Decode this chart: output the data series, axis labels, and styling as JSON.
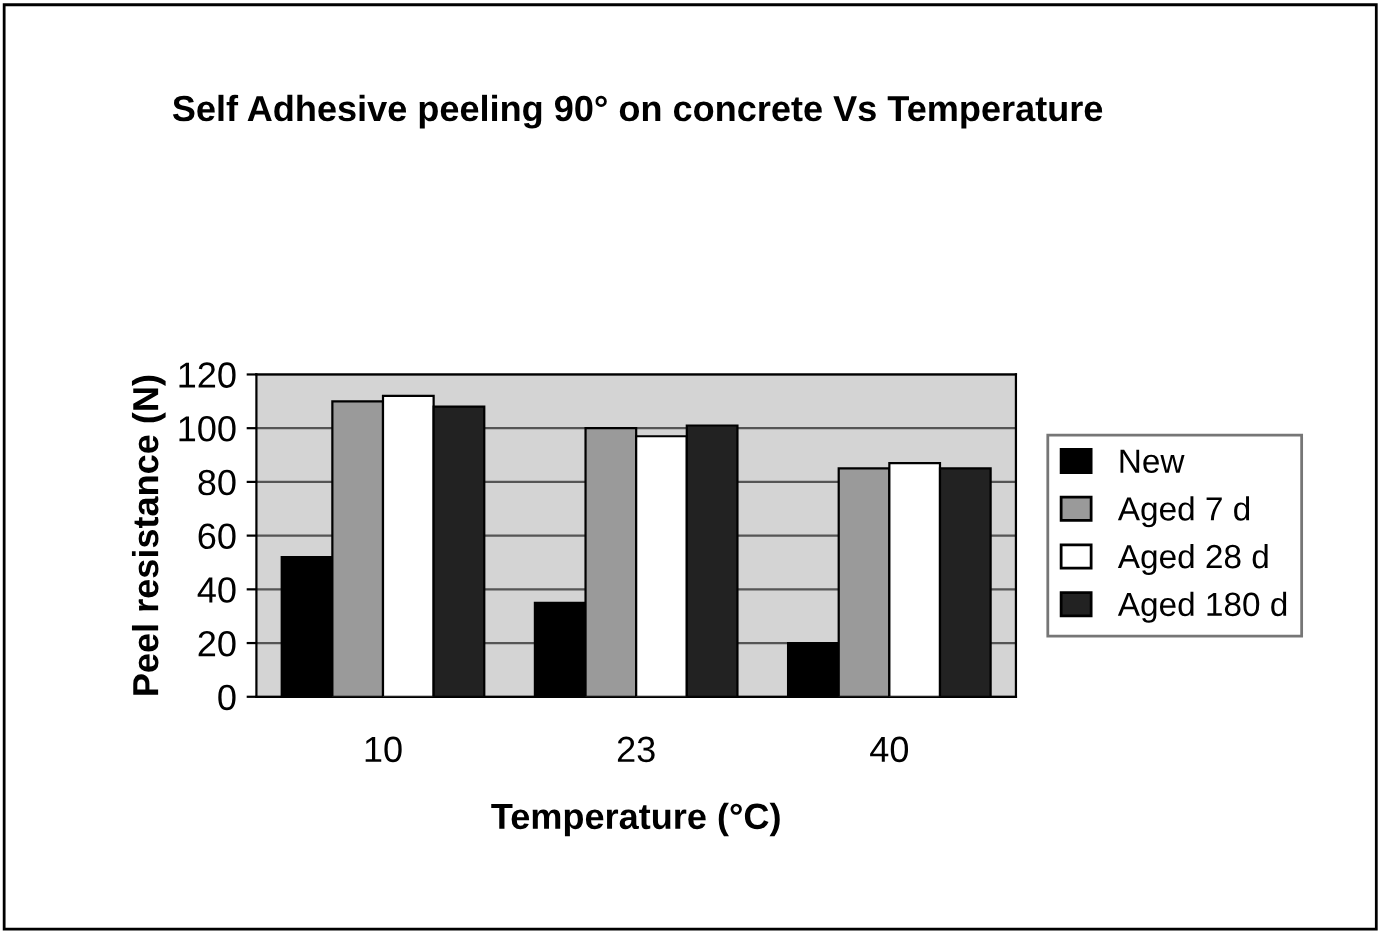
{
  "chart_data": {
    "type": "bar",
    "title": "Self Adhesive peeling 90° on concrete Vs Temperature",
    "xlabel": "Temperature (°C)",
    "ylabel": "Peel resistance (N)",
    "categories": [
      "10",
      "23",
      "40"
    ],
    "series": [
      {
        "name": "New",
        "color": "#000000",
        "values": [
          52,
          35,
          20
        ]
      },
      {
        "name": "Aged 7 d",
        "color": "#9a9a9a",
        "values": [
          110,
          100,
          85
        ]
      },
      {
        "name": "Aged 28 d",
        "color": "#ffffff",
        "values": [
          112,
          97,
          87
        ]
      },
      {
        "name": "Aged 180 d",
        "color": "#222222",
        "values": [
          108,
          101,
          85
        ]
      }
    ],
    "ylim": [
      0,
      120
    ],
    "yticks": [
      0,
      20,
      40,
      60,
      80,
      100,
      120
    ],
    "grid": "y",
    "legend": "right"
  }
}
